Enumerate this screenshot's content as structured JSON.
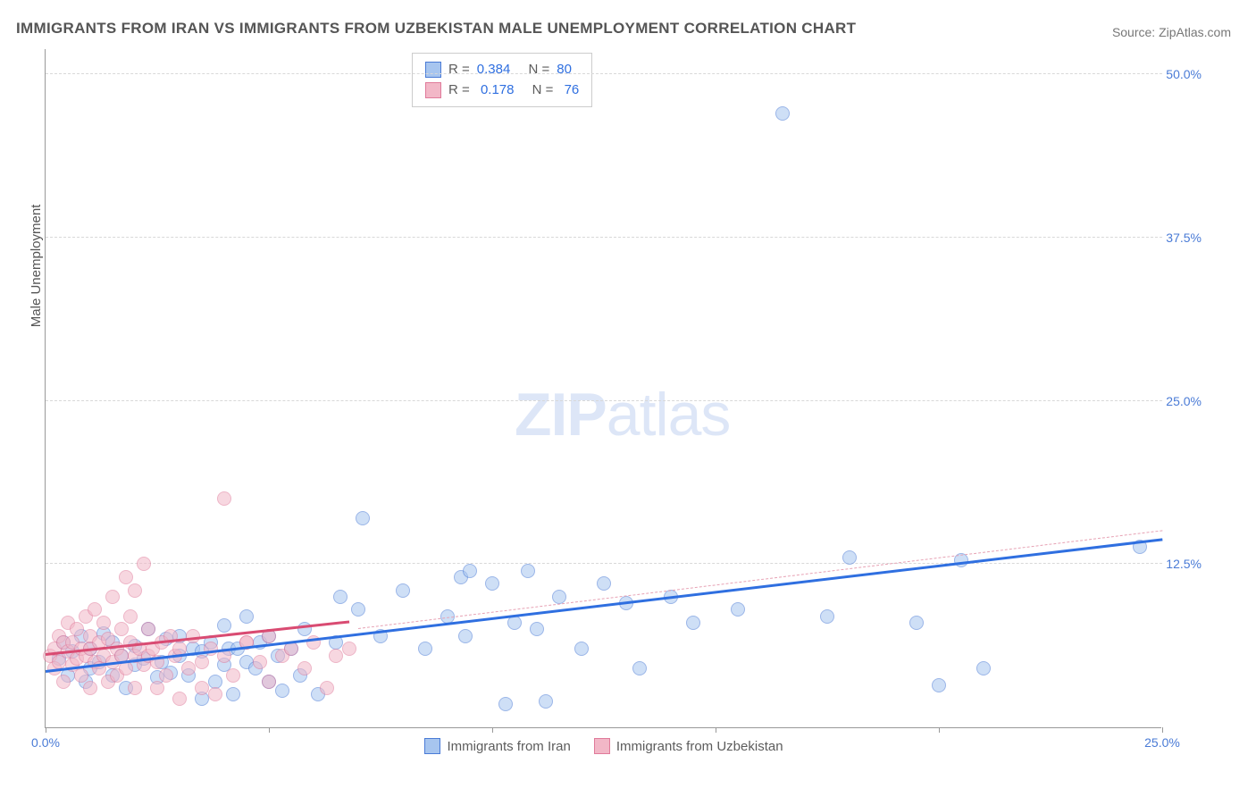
{
  "title": "IMMIGRANTS FROM IRAN VS IMMIGRANTS FROM UZBEKISTAN MALE UNEMPLOYMENT CORRELATION CHART",
  "source_label": "Source:",
  "source_value": "ZipAtlas.com",
  "ylabel": "Male Unemployment",
  "watermark_bold": "ZIP",
  "watermark_light": "atlas",
  "chart": {
    "type": "scatter",
    "xlim": [
      0,
      25
    ],
    "ylim": [
      0,
      52
    ],
    "background_color": "#ffffff",
    "grid_color": "#d8d8d8",
    "axis_color": "#999999",
    "tick_color": "#4a7bd6",
    "x_ticks": [
      0,
      5,
      10,
      15,
      20,
      25
    ],
    "x_tick_labels": [
      "0.0%",
      "",
      "",
      "",
      "",
      "25.0%"
    ],
    "y_gridlines": [
      12.5,
      25.0,
      37.5,
      50.0
    ],
    "y_tick_labels": [
      "12.5%",
      "25.0%",
      "37.5%",
      "50.0%"
    ],
    "point_radius": 8,
    "point_opacity": 0.55,
    "series": [
      {
        "name": "Immigrants from Iran",
        "color_fill": "#a7c5ef",
        "color_stroke": "#4a7bd6",
        "R": "0.384",
        "N": "80",
        "regression": {
          "x1": 0,
          "y1": 4.2,
          "x2": 25,
          "y2": 14.3,
          "color": "#2f6fe0",
          "width": 3,
          "style": "solid"
        },
        "regression_ext": {
          "x1": 7,
          "y1": 7.5,
          "x2": 25,
          "y2": 15.0,
          "color": "#e7a2b4",
          "width": 1,
          "style": "dashed"
        },
        "points": [
          [
            0.3,
            5.3
          ],
          [
            0.4,
            6.5
          ],
          [
            0.5,
            4.0
          ],
          [
            0.6,
            5.8
          ],
          [
            0.8,
            7.0
          ],
          [
            0.9,
            3.5
          ],
          [
            1.0,
            4.5
          ],
          [
            1.0,
            6.0
          ],
          [
            1.2,
            5.0
          ],
          [
            1.3,
            7.2
          ],
          [
            1.5,
            4.0
          ],
          [
            1.5,
            6.5
          ],
          [
            1.7,
            5.5
          ],
          [
            1.8,
            3.0
          ],
          [
            2.0,
            4.8
          ],
          [
            2.0,
            6.2
          ],
          [
            2.2,
            5.3
          ],
          [
            2.3,
            7.5
          ],
          [
            2.5,
            3.8
          ],
          [
            2.6,
            5.0
          ],
          [
            2.7,
            6.8
          ],
          [
            2.8,
            4.2
          ],
          [
            3.0,
            5.5
          ],
          [
            3.0,
            7.0
          ],
          [
            3.2,
            4.0
          ],
          [
            3.3,
            6.0
          ],
          [
            3.5,
            2.2
          ],
          [
            3.5,
            5.8
          ],
          [
            3.7,
            6.5
          ],
          [
            3.8,
            3.5
          ],
          [
            4.0,
            4.8
          ],
          [
            4.0,
            7.8
          ],
          [
            4.1,
            6.0
          ],
          [
            4.2,
            2.5
          ],
          [
            4.3,
            6.0
          ],
          [
            4.5,
            5.0
          ],
          [
            4.5,
            8.5
          ],
          [
            4.7,
            4.5
          ],
          [
            4.8,
            6.5
          ],
          [
            5.0,
            3.5
          ],
          [
            5.0,
            7.0
          ],
          [
            5.2,
            5.5
          ],
          [
            5.3,
            2.8
          ],
          [
            5.5,
            6.0
          ],
          [
            5.7,
            4.0
          ],
          [
            5.8,
            7.5
          ],
          [
            6.1,
            2.5
          ],
          [
            6.5,
            6.5
          ],
          [
            6.6,
            10.0
          ],
          [
            7.0,
            9.0
          ],
          [
            7.1,
            16.0
          ],
          [
            7.5,
            7.0
          ],
          [
            8.0,
            10.5
          ],
          [
            8.5,
            6.0
          ],
          [
            9.0,
            8.5
          ],
          [
            9.3,
            11.5
          ],
          [
            9.4,
            7.0
          ],
          [
            9.5,
            12.0
          ],
          [
            10.0,
            11.0
          ],
          [
            10.3,
            1.8
          ],
          [
            10.5,
            8.0
          ],
          [
            10.8,
            12.0
          ],
          [
            11.0,
            7.5
          ],
          [
            11.2,
            2.0
          ],
          [
            11.5,
            10.0
          ],
          [
            12.0,
            6.0
          ],
          [
            12.5,
            11.0
          ],
          [
            13.0,
            9.5
          ],
          [
            13.3,
            4.5
          ],
          [
            14.0,
            10.0
          ],
          [
            14.5,
            8.0
          ],
          [
            15.5,
            9.0
          ],
          [
            16.5,
            47.0
          ],
          [
            17.5,
            8.5
          ],
          [
            18.0,
            13.0
          ],
          [
            19.5,
            8.0
          ],
          [
            20.0,
            3.2
          ],
          [
            20.5,
            12.8
          ],
          [
            21.0,
            4.5
          ],
          [
            24.5,
            13.8
          ]
        ]
      },
      {
        "name": "Immigrants from Uzbekistan",
        "color_fill": "#f2b7c7",
        "color_stroke": "#e07a9a",
        "R": "0.178",
        "N": "76",
        "regression": {
          "x1": 0,
          "y1": 5.5,
          "x2": 6.8,
          "y2": 8.0,
          "color": "#d94b72",
          "width": 3,
          "style": "solid"
        },
        "points": [
          [
            0.1,
            5.5
          ],
          [
            0.2,
            6.0
          ],
          [
            0.2,
            4.5
          ],
          [
            0.3,
            7.0
          ],
          [
            0.3,
            5.0
          ],
          [
            0.4,
            6.5
          ],
          [
            0.4,
            3.5
          ],
          [
            0.5,
            5.8
          ],
          [
            0.5,
            8.0
          ],
          [
            0.6,
            4.8
          ],
          [
            0.6,
            6.5
          ],
          [
            0.7,
            5.3
          ],
          [
            0.7,
            7.5
          ],
          [
            0.8,
            4.0
          ],
          [
            0.8,
            6.0
          ],
          [
            0.9,
            5.5
          ],
          [
            0.9,
            8.5
          ],
          [
            1.0,
            3.0
          ],
          [
            1.0,
            6.0
          ],
          [
            1.0,
            7.0
          ],
          [
            1.1,
            5.0
          ],
          [
            1.1,
            9.0
          ],
          [
            1.2,
            4.5
          ],
          [
            1.2,
            6.5
          ],
          [
            1.3,
            5.5
          ],
          [
            1.3,
            8.0
          ],
          [
            1.4,
            3.5
          ],
          [
            1.4,
            6.8
          ],
          [
            1.5,
            5.0
          ],
          [
            1.5,
            10.0
          ],
          [
            1.6,
            4.0
          ],
          [
            1.6,
            6.0
          ],
          [
            1.7,
            7.5
          ],
          [
            1.7,
            5.5
          ],
          [
            1.8,
            11.5
          ],
          [
            1.8,
            4.5
          ],
          [
            1.9,
            6.5
          ],
          [
            1.9,
            8.5
          ],
          [
            2.0,
            3.0
          ],
          [
            2.0,
            5.5
          ],
          [
            2.0,
            10.5
          ],
          [
            2.1,
            6.0
          ],
          [
            2.2,
            4.8
          ],
          [
            2.2,
            12.5
          ],
          [
            2.3,
            5.5
          ],
          [
            2.3,
            7.5
          ],
          [
            2.4,
            6.0
          ],
          [
            2.5,
            3.0
          ],
          [
            2.5,
            5.0
          ],
          [
            2.6,
            6.5
          ],
          [
            2.7,
            4.0
          ],
          [
            2.8,
            7.0
          ],
          [
            2.9,
            5.5
          ],
          [
            3.0,
            2.2
          ],
          [
            3.0,
            6.0
          ],
          [
            3.2,
            4.5
          ],
          [
            3.3,
            7.0
          ],
          [
            3.5,
            5.0
          ],
          [
            3.5,
            3.0
          ],
          [
            3.7,
            6.0
          ],
          [
            3.8,
            2.5
          ],
          [
            4.0,
            5.5
          ],
          [
            4.0,
            17.5
          ],
          [
            4.2,
            4.0
          ],
          [
            4.5,
            6.5
          ],
          [
            4.5,
            6.5
          ],
          [
            4.8,
            5.0
          ],
          [
            5.0,
            3.5
          ],
          [
            5.0,
            7.0
          ],
          [
            5.3,
            5.5
          ],
          [
            5.5,
            6.0
          ],
          [
            5.8,
            4.5
          ],
          [
            6.0,
            6.5
          ],
          [
            6.3,
            3.0
          ],
          [
            6.5,
            5.5
          ],
          [
            6.8,
            6.0
          ]
        ]
      }
    ]
  },
  "legend_top": {
    "r_label": "R =",
    "n_label": "N ="
  },
  "legend_bottom": {
    "iran": "Immigrants from Iran",
    "uzbekistan": "Immigrants from Uzbekistan"
  }
}
